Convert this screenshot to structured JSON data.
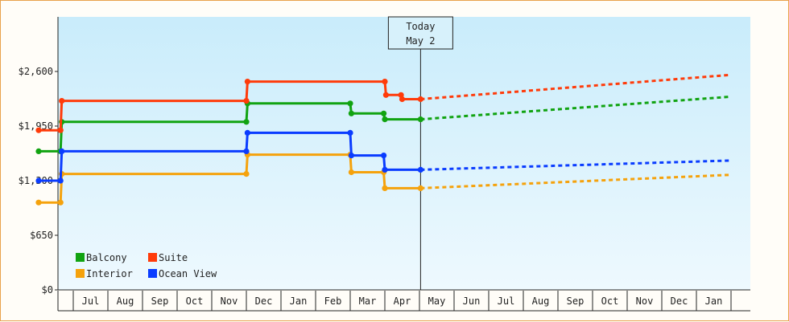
{
  "chart_data": {
    "type": "line",
    "title": "",
    "xlabel": "",
    "ylabel": "",
    "ylim": [
      0,
      3250
    ],
    "y_ticks": [
      {
        "value": 0,
        "label": "$0"
      },
      {
        "value": 650,
        "label": "$650"
      },
      {
        "value": 1300,
        "label": "$1,300"
      },
      {
        "value": 1950,
        "label": "$1,950"
      },
      {
        "value": 2600,
        "label": "$2,600"
      }
    ],
    "x_months": [
      "Jul",
      "Aug",
      "Sep",
      "Oct",
      "Nov",
      "Dec",
      "Jan",
      "Feb",
      "Mar",
      "Apr",
      "May",
      "Jun",
      "Jul",
      "Aug",
      "Sep",
      "Oct",
      "Nov",
      "Dec",
      "Jan"
    ],
    "x_range": [
      "Jun 1",
      "Feb 1 +1y"
    ],
    "today": {
      "line1": "Today",
      "line2": "May 2",
      "x": "May 2"
    },
    "grid": false,
    "legend_position": "bottom-left",
    "series": [
      {
        "name": "Balcony",
        "color": "#11a311",
        "points": [
          [
            "Jun 1",
            1650
          ],
          [
            "Jun 20",
            1650
          ],
          [
            "Jun 21",
            2000
          ],
          [
            "Dec 1",
            2000
          ],
          [
            "Dec 2",
            2220
          ],
          [
            "Mar 1",
            2220
          ],
          [
            "Mar 2",
            2100
          ],
          [
            "Mar 31",
            2100
          ],
          [
            "Apr 1",
            2030
          ],
          [
            "May 2",
            2030
          ]
        ],
        "forecast": [
          [
            "May 2",
            2030
          ],
          [
            "Feb 1 +1y",
            2300
          ]
        ]
      },
      {
        "name": "Suite",
        "color": "#ff3b0a",
        "points": [
          [
            "Jun 1",
            1900
          ],
          [
            "Jun 20",
            1900
          ],
          [
            "Jun 21",
            2250
          ],
          [
            "Dec 1",
            2250
          ],
          [
            "Dec 2",
            2480
          ],
          [
            "Apr 1",
            2480
          ],
          [
            "Apr 2",
            2320
          ],
          [
            "Apr 15",
            2320
          ],
          [
            "Apr 16",
            2270
          ],
          [
            "May 2",
            2270
          ]
        ],
        "forecast": [
          [
            "May 2",
            2270
          ],
          [
            "Feb 1 +1y",
            2560
          ]
        ]
      },
      {
        "name": "Interior",
        "color": "#f5a20c",
        "points": [
          [
            "Jun 1",
            1040
          ],
          [
            "Jun 20",
            1040
          ],
          [
            "Jun 21",
            1380
          ],
          [
            "Dec 1",
            1380
          ],
          [
            "Dec 2",
            1610
          ],
          [
            "Mar 1",
            1610
          ],
          [
            "Mar 2",
            1400
          ],
          [
            "Mar 31",
            1400
          ],
          [
            "Apr 1",
            1210
          ],
          [
            "May 2",
            1210
          ]
        ],
        "forecast": [
          [
            "May 2",
            1210
          ],
          [
            "Feb 1 +1y",
            1370
          ]
        ]
      },
      {
        "name": "Ocean View",
        "color": "#0a3cff",
        "points": [
          [
            "Jun 1",
            1300
          ],
          [
            "Jun 20",
            1300
          ],
          [
            "Jun 21",
            1650
          ],
          [
            "Dec 1",
            1650
          ],
          [
            "Dec 2",
            1870
          ],
          [
            "Mar 1",
            1870
          ],
          [
            "Mar 2",
            1600
          ],
          [
            "Mar 31",
            1600
          ],
          [
            "Apr 1",
            1430
          ],
          [
            "May 2",
            1430
          ]
        ],
        "forecast": [
          [
            "May 2",
            1430
          ],
          [
            "Feb 1 +1y",
            1540
          ]
        ]
      }
    ]
  }
}
